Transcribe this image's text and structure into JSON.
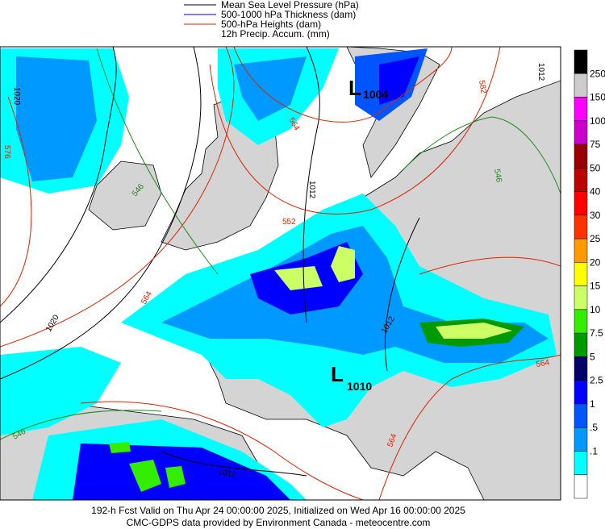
{
  "legend": [
    {
      "label": "Mean Sea Level Pressure (hPa)",
      "color": "#000000"
    },
    {
      "label": "500-1000 hPa Thickness (dam)",
      "color": "#0000cc"
    },
    {
      "label": "500-hPa Heights (dam)",
      "color": "#dd2200"
    },
    {
      "label": "12h Precip. Accum. (mm)"
    }
  ],
  "colorbar": {
    "colors": [
      "#000000",
      "#cccccc",
      "#ff00ff",
      "#cc00cc",
      "#990000",
      "#bb0000",
      "#ff0000",
      "#ff3300",
      "#ff9900",
      "#ffff00",
      "#ccff66",
      "#33ee00",
      "#009900",
      "#000066",
      "#0000ff",
      "#0055ff",
      "#0099ff",
      "#00ffff",
      "#ffffff"
    ],
    "labels": [
      "250",
      "150",
      "100",
      "75",
      "50",
      "40",
      "30",
      "25",
      "20",
      "15",
      "10",
      "7.5",
      "5",
      "2.5",
      "1",
      ".5",
      ".1"
    ]
  },
  "lows": [
    {
      "symbol": "L",
      "pressure": "1004"
    },
    {
      "symbol": "L",
      "pressure": "1010"
    }
  ],
  "contour_labels": {
    "pressure": [
      "1020",
      "1020",
      "1012",
      "1012",
      "1012",
      "1012"
    ],
    "heights": [
      "576",
      "564",
      "552",
      "564",
      "564",
      "564",
      "582"
    ],
    "thickness": [
      "546",
      "546",
      "546"
    ]
  },
  "footer": [
    "192-h Fcst Valid on Thu Apr 24 00:00:00 2025, Initialized on Wed Apr 16 00:00:00 2025",
    "CMC-GDPS data provided by Environment Canada - meteocentre.com"
  ]
}
